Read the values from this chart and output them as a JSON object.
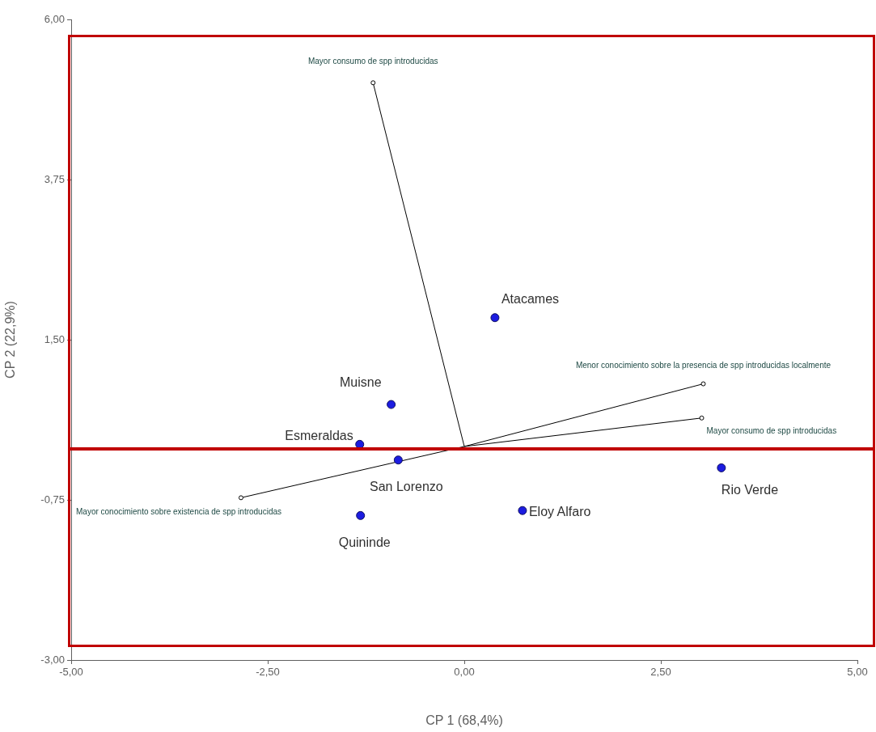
{
  "chart_data": {
    "type": "scatter",
    "xlabel": "CP 1 (68,4%)",
    "ylabel": "CP 2 (22,9%)",
    "xlim": [
      -5,
      5
    ],
    "ylim": [
      -3,
      6
    ],
    "xticks": [
      {
        "value": -5,
        "label": "-5,00"
      },
      {
        "value": -2.5,
        "label": "-2,50"
      },
      {
        "value": 0,
        "label": "0,00"
      },
      {
        "value": 2.5,
        "label": "2,50"
      },
      {
        "value": 5,
        "label": "5,00"
      }
    ],
    "yticks": [
      {
        "value": -3,
        "label": "-3,00"
      },
      {
        "value": -0.75,
        "label": "-0,75"
      },
      {
        "value": 1.5,
        "label": "1,50"
      },
      {
        "value": 3.75,
        "label": "3,75"
      },
      {
        "value": 6,
        "label": "6,00"
      }
    ],
    "grid": false,
    "legend": false,
    "series": [
      {
        "color": "#1c1ce0",
        "marker": "circle",
        "x": [
          0.39,
          -0.93,
          -1.33,
          -0.84,
          -1.32,
          0.74,
          3.27
        ],
        "values": [
          1.81,
          0.59,
          0.03,
          -0.19,
          -0.97,
          -0.9,
          -0.3
        ]
      },
      {
        "type": "line",
        "name": "Mayor consumo de spp introducidas",
        "color": "#000000",
        "marker": "circle",
        "x": [
          0,
          -1.16
        ],
        "values": [
          0,
          5.11
        ]
      },
      {
        "type": "line",
        "name": "Menor conocimiento sobre la presencia de spp introducidas localmente",
        "color": "#000000",
        "marker": "circle",
        "x": [
          0,
          3.04
        ],
        "values": [
          0,
          0.88
        ]
      },
      {
        "type": "line",
        "name": "Mayor consumo de spp introducidas",
        "color": "#000000",
        "marker": "circle",
        "x": [
          0,
          3.02
        ],
        "values": [
          0,
          0.4
        ]
      },
      {
        "type": "line",
        "name": "Mayor conocimiento sobre existencia de spp introducidas",
        "color": "#000000",
        "marker": "circle",
        "x": [
          0,
          -2.84
        ],
        "values": [
          0,
          -0.72
        ]
      }
    ],
    "annotations": [
      {
        "text": "Atacames",
        "x": 0.39,
        "y": 1.81
      },
      {
        "text": "Muisne",
        "x": -0.93,
        "y": 0.59
      },
      {
        "text": "Esmeraldas",
        "x": -1.33,
        "y": 0.03
      },
      {
        "text": "San Lorenzo",
        "x": -0.84,
        "y": -0.19
      },
      {
        "text": "Quininde",
        "x": -1.32,
        "y": -0.97
      },
      {
        "text": "Eloy Alfaro",
        "x": 0.74,
        "y": -0.9
      },
      {
        "text": "Rio Verde",
        "x": 3.27,
        "y": -0.3
      }
    ]
  }
}
